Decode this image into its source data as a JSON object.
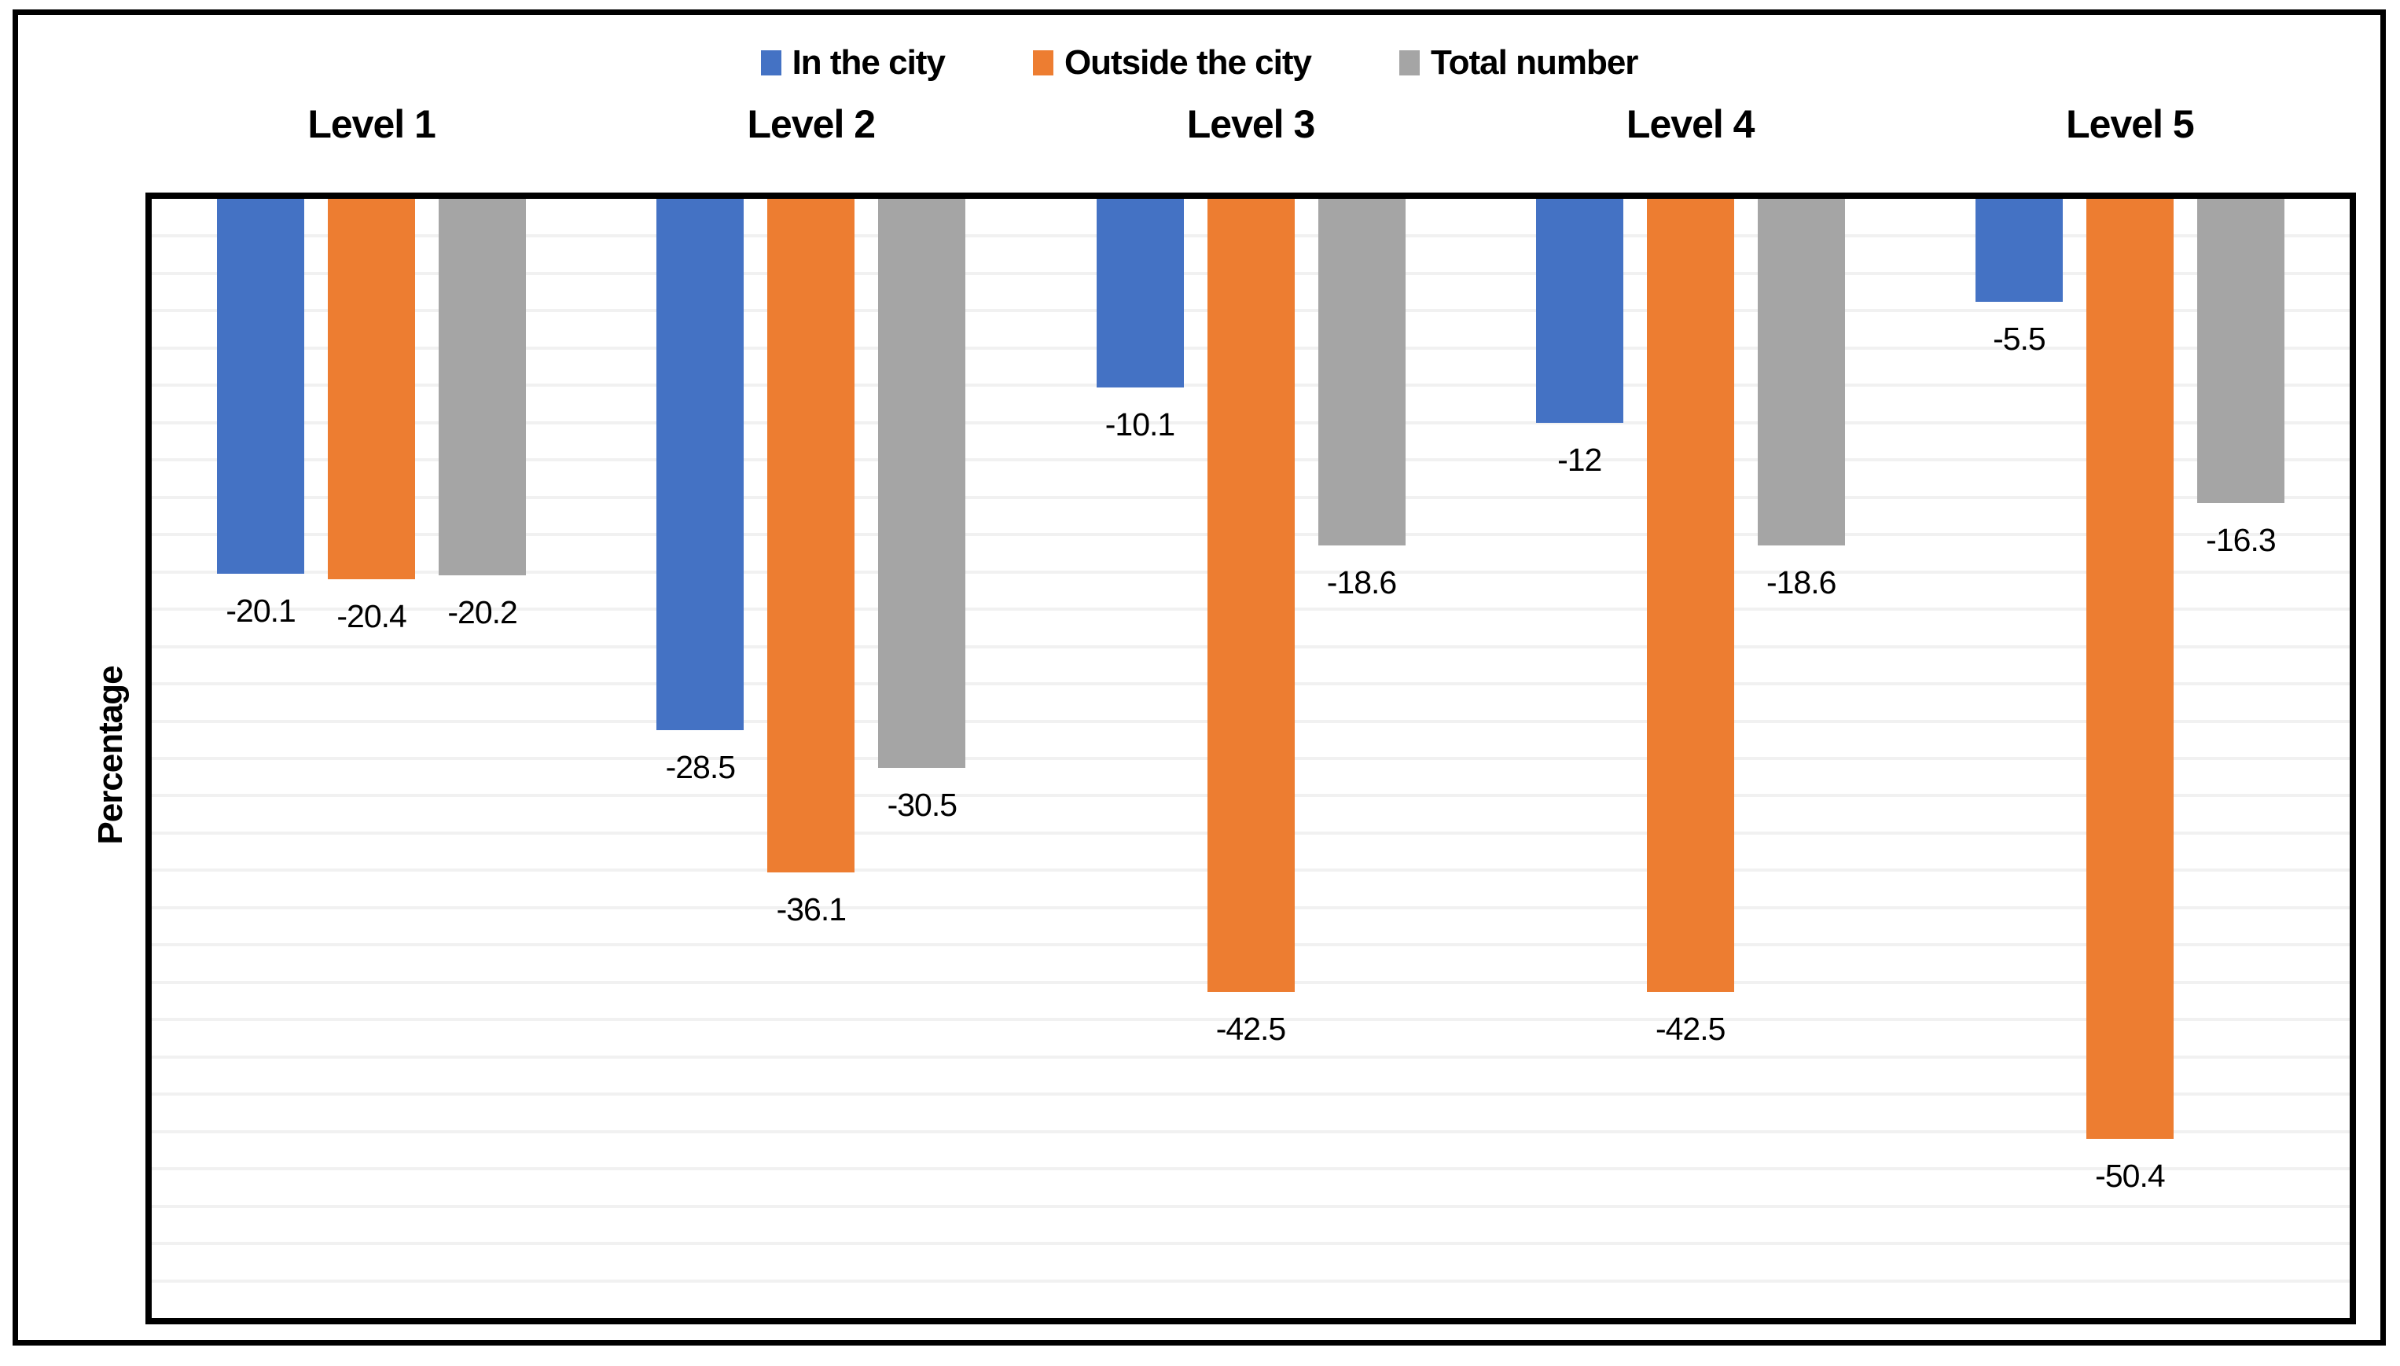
{
  "chart_data": {
    "type": "bar",
    "title": "",
    "categories": [
      "Level 1",
      "Level 2",
      "Level 3",
      "Level 4",
      "Level 5"
    ],
    "series": [
      {
        "name": "In the city",
        "color": "#4472C4",
        "values": [
          -20.1,
          -28.5,
          -10.1,
          -12,
          -5.5
        ]
      },
      {
        "name": "Outside the city",
        "color": "#ED7D31",
        "values": [
          -20.4,
          -36.1,
          -42.5,
          -42.5,
          -50.4
        ]
      },
      {
        "name": "Total number",
        "color": "#A5A5A5",
        "values": [
          -20.2,
          -30.5,
          -18.6,
          -18.6,
          -16.3
        ]
      }
    ],
    "data_labels": [
      "-20.1",
      "-20.4",
      "-20.2",
      "-28.5",
      "-36.1",
      "-30.5",
      "-10.1",
      "-42.5",
      "-18.6",
      "-12",
      "-42.5",
      "-18.6",
      "-5.5",
      "-50.4",
      "-16.3"
    ],
    "xlabel": "",
    "ylabel": "Percentage",
    "ylim": [
      -60,
      0
    ],
    "gridline_step": 2,
    "grid": true,
    "legend_position": "top",
    "bars_direction": "down-from-zero-at-top"
  },
  "colors": {
    "series_blue": "#4472C4",
    "series_orange": "#ED7D31",
    "series_gray": "#A5A5A5",
    "gridline": "#F1F1F1",
    "axis": "#000000",
    "frame": "#000000",
    "background": "#FFFFFF",
    "text": "#000000"
  }
}
